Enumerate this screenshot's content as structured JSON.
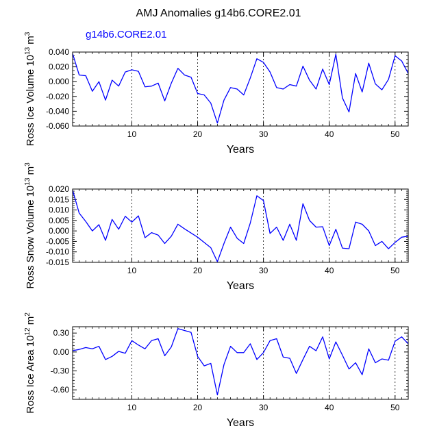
{
  "title": "AMJ Anomalies g14b6.CORE2.01",
  "legend_label": "g14b6.CORE2.01",
  "colors": {
    "series": "#0000ff",
    "axis": "#000000",
    "refline": "#000000"
  },
  "chart_data": [
    {
      "type": "line",
      "ylabel_main": "Ross Ice Volume 10",
      "ylabel_exp": "13",
      "ylabel_unit": " m",
      "ylabel_unit_exp": "3",
      "xlabel": "Years",
      "xlim": [
        1,
        52
      ],
      "ylim": [
        -0.06,
        0.04
      ],
      "yticks": [
        -0.06,
        -0.04,
        -0.02,
        0.0,
        0.02,
        0.04
      ],
      "ytick_labels": [
        "-0.060",
        "-0.040",
        "-0.020",
        "0.000",
        "0.020",
        "0.040"
      ],
      "yminor_step": 0.005,
      "xticks": [
        10,
        20,
        30,
        40,
        50
      ],
      "xtick_labels": [
        "10",
        "20",
        "30",
        "40",
        "50"
      ],
      "xminor_step": 1,
      "vlines": [
        10,
        20,
        30,
        40,
        50
      ],
      "series": [
        {
          "name": "g14b6.CORE2.01",
          "x": [
            1,
            2,
            3,
            4,
            5,
            6,
            7,
            8,
            9,
            10,
            11,
            12,
            13,
            14,
            15,
            16,
            17,
            18,
            19,
            20,
            21,
            22,
            23,
            24,
            25,
            26,
            27,
            28,
            29,
            30,
            31,
            32,
            33,
            34,
            35,
            36,
            37,
            38,
            39,
            40,
            41,
            42,
            43,
            44,
            45,
            46,
            47,
            48,
            49,
            50,
            51,
            52
          ],
          "values": [
            0.038,
            0.009,
            0.008,
            -0.013,
            0.0,
            -0.025,
            0.002,
            -0.006,
            0.013,
            0.016,
            0.014,
            -0.007,
            -0.006,
            -0.002,
            -0.026,
            -0.002,
            0.018,
            0.009,
            0.006,
            -0.016,
            -0.018,
            -0.029,
            -0.056,
            -0.025,
            -0.008,
            -0.01,
            -0.018,
            0.005,
            0.031,
            0.026,
            0.013,
            -0.008,
            -0.01,
            -0.004,
            -0.006,
            0.021,
            0.002,
            -0.01,
            0.017,
            -0.004,
            0.037,
            -0.022,
            -0.041,
            0.011,
            -0.014,
            0.025,
            -0.003,
            -0.011,
            0.003,
            0.035,
            0.028,
            0.011
          ]
        }
      ]
    },
    {
      "type": "line",
      "ylabel_main": "Ross Snow Volume 10",
      "ylabel_exp": "13",
      "ylabel_unit": " m",
      "ylabel_unit_exp": "3",
      "xlabel": "Years",
      "xlim": [
        1,
        52
      ],
      "ylim": [
        -0.015,
        0.02
      ],
      "yticks": [
        -0.015,
        -0.01,
        -0.005,
        0.0,
        0.005,
        0.01,
        0.015,
        0.02
      ],
      "ytick_labels": [
        "-0.015",
        "-0.010",
        "-0.005",
        "0.000",
        "0.005",
        "0.010",
        "0.015",
        "0.020"
      ],
      "yminor_step": 0.001,
      "xticks": [
        10,
        20,
        30,
        40,
        50
      ],
      "xtick_labels": [
        "10",
        "20",
        "30",
        "40",
        "50"
      ],
      "xminor_step": 1,
      "vlines": [
        10,
        20,
        30,
        40,
        50
      ],
      "series": [
        {
          "name": "g14b6.CORE2.01",
          "x": [
            1,
            2,
            3,
            4,
            5,
            6,
            7,
            8,
            9,
            10,
            11,
            12,
            13,
            14,
            15,
            16,
            17,
            18,
            19,
            20,
            21,
            22,
            23,
            24,
            25,
            26,
            27,
            28,
            29,
            30,
            31,
            32,
            33,
            34,
            35,
            36,
            37,
            38,
            39,
            40,
            41,
            42,
            43,
            44,
            45,
            46,
            47,
            48,
            49,
            50,
            51,
            52
          ],
          "values": [
            0.0195,
            0.0085,
            0.0045,
            0.0,
            0.003,
            -0.0045,
            0.0055,
            0.0008,
            0.007,
            0.0042,
            0.0072,
            -0.0032,
            -0.0008,
            -0.002,
            -0.006,
            -0.0025,
            0.0032,
            0.001,
            -0.001,
            -0.003,
            -0.0055,
            -0.008,
            -0.0147,
            -0.006,
            0.0018,
            -0.0035,
            -0.006,
            0.0038,
            0.0168,
            0.0145,
            -0.0012,
            0.0018,
            -0.0045,
            0.0032,
            -0.0045,
            0.013,
            0.005,
            0.0018,
            0.002,
            -0.007,
            0.0008,
            -0.0082,
            -0.0085,
            0.0042,
            0.0032,
            0.0,
            -0.007,
            -0.005,
            -0.0085,
            -0.0055,
            -0.003,
            -0.0025
          ]
        }
      ]
    },
    {
      "type": "line",
      "ylabel_main": "Ross Ice Area 10",
      "ylabel_exp": "12",
      "ylabel_unit": " m",
      "ylabel_unit_exp": "2",
      "xlabel": "Years",
      "xlim": [
        1,
        52
      ],
      "ylim": [
        -0.75,
        0.4
      ],
      "yticks": [
        -0.6,
        -0.3,
        0.0,
        0.3
      ],
      "ytick_labels": [
        "-0.60",
        "-0.30",
        "0.00",
        "0.30"
      ],
      "yminor_step": 0.05,
      "xticks": [
        10,
        20,
        30,
        40,
        50
      ],
      "xtick_labels": [
        "10",
        "20",
        "30",
        "40",
        "50"
      ],
      "xminor_step": 1,
      "vlines": [
        10,
        20,
        30,
        40,
        50
      ],
      "series": [
        {
          "name": "g14b6.CORE2.01",
          "x": [
            1,
            2,
            3,
            4,
            5,
            6,
            7,
            8,
            9,
            10,
            11,
            12,
            13,
            14,
            15,
            16,
            17,
            18,
            19,
            20,
            21,
            22,
            23,
            24,
            25,
            26,
            27,
            28,
            29,
            30,
            31,
            32,
            33,
            34,
            35,
            36,
            37,
            38,
            39,
            40,
            41,
            42,
            43,
            44,
            45,
            46,
            47,
            48,
            49,
            50,
            51,
            52
          ],
          "values": [
            0.02,
            0.04,
            0.07,
            0.05,
            0.09,
            -0.12,
            -0.07,
            0.01,
            -0.02,
            0.18,
            0.11,
            0.05,
            0.18,
            0.21,
            -0.06,
            0.08,
            0.37,
            0.34,
            0.31,
            -0.07,
            -0.22,
            -0.18,
            -0.68,
            -0.2,
            0.09,
            -0.01,
            -0.01,
            0.13,
            -0.12,
            -0.01,
            0.18,
            0.21,
            -0.08,
            -0.1,
            -0.34,
            -0.12,
            0.09,
            0.02,
            0.24,
            -0.11,
            0.16,
            -0.05,
            -0.27,
            -0.17,
            -0.36,
            0.05,
            -0.17,
            -0.11,
            -0.13,
            0.17,
            0.24,
            0.13
          ]
        }
      ]
    }
  ]
}
